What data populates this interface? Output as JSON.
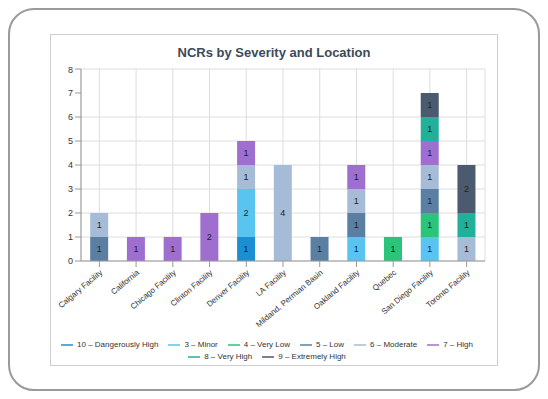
{
  "chart_data": {
    "type": "bar",
    "title": "NCRs by Severity and Location",
    "categories": [
      "Calgary Facility",
      "California",
      "Chicago Facility",
      "Clinton Facility",
      "Denver Facility",
      "LA Facility",
      "Mildand, Permian Basin",
      "Oakland Facility",
      "Quebec",
      "San Diego Facility",
      "Toronto Facility"
    ],
    "series": [
      {
        "name": "10 – Dangerously High",
        "color": "#1b8fd2",
        "values": [
          null,
          null,
          null,
          null,
          1,
          null,
          null,
          null,
          null,
          null,
          null
        ]
      },
      {
        "name": "3 – Minor",
        "color": "#58c4ef",
        "values": [
          null,
          null,
          null,
          null,
          2,
          null,
          null,
          1,
          null,
          1,
          null
        ]
      },
      {
        "name": "4 – Very Low",
        "color": "#2bc47b",
        "values": [
          null,
          null,
          null,
          null,
          null,
          null,
          null,
          null,
          1,
          1,
          null
        ]
      },
      {
        "name": "5 – Low",
        "color": "#5a7fa3",
        "values": [
          1,
          null,
          null,
          null,
          null,
          null,
          1,
          1,
          null,
          1,
          null
        ]
      },
      {
        "name": "6 – Moderate",
        "color": "#a6bcd6",
        "values": [
          1,
          null,
          null,
          null,
          1,
          4,
          null,
          1,
          null,
          1,
          1
        ]
      },
      {
        "name": "7 – High",
        "color": "#9e6fcf",
        "values": [
          null,
          1,
          1,
          2,
          1,
          null,
          null,
          1,
          null,
          1,
          null
        ]
      },
      {
        "name": "8 – Very High",
        "color": "#23b09a",
        "values": [
          null,
          null,
          null,
          null,
          null,
          null,
          null,
          null,
          null,
          1,
          1
        ]
      },
      {
        "name": "9 – Extremely High",
        "color": "#4b5a6e",
        "values": [
          null,
          null,
          null,
          null,
          null,
          null,
          null,
          null,
          null,
          1,
          2
        ]
      }
    ],
    "ylim": [
      0,
      8
    ],
    "yticks": [
      0,
      1,
      2,
      3,
      4,
      5,
      6,
      7,
      8
    ],
    "stacked": true,
    "data_labels": true,
    "grid": true,
    "legend": "bottom"
  }
}
